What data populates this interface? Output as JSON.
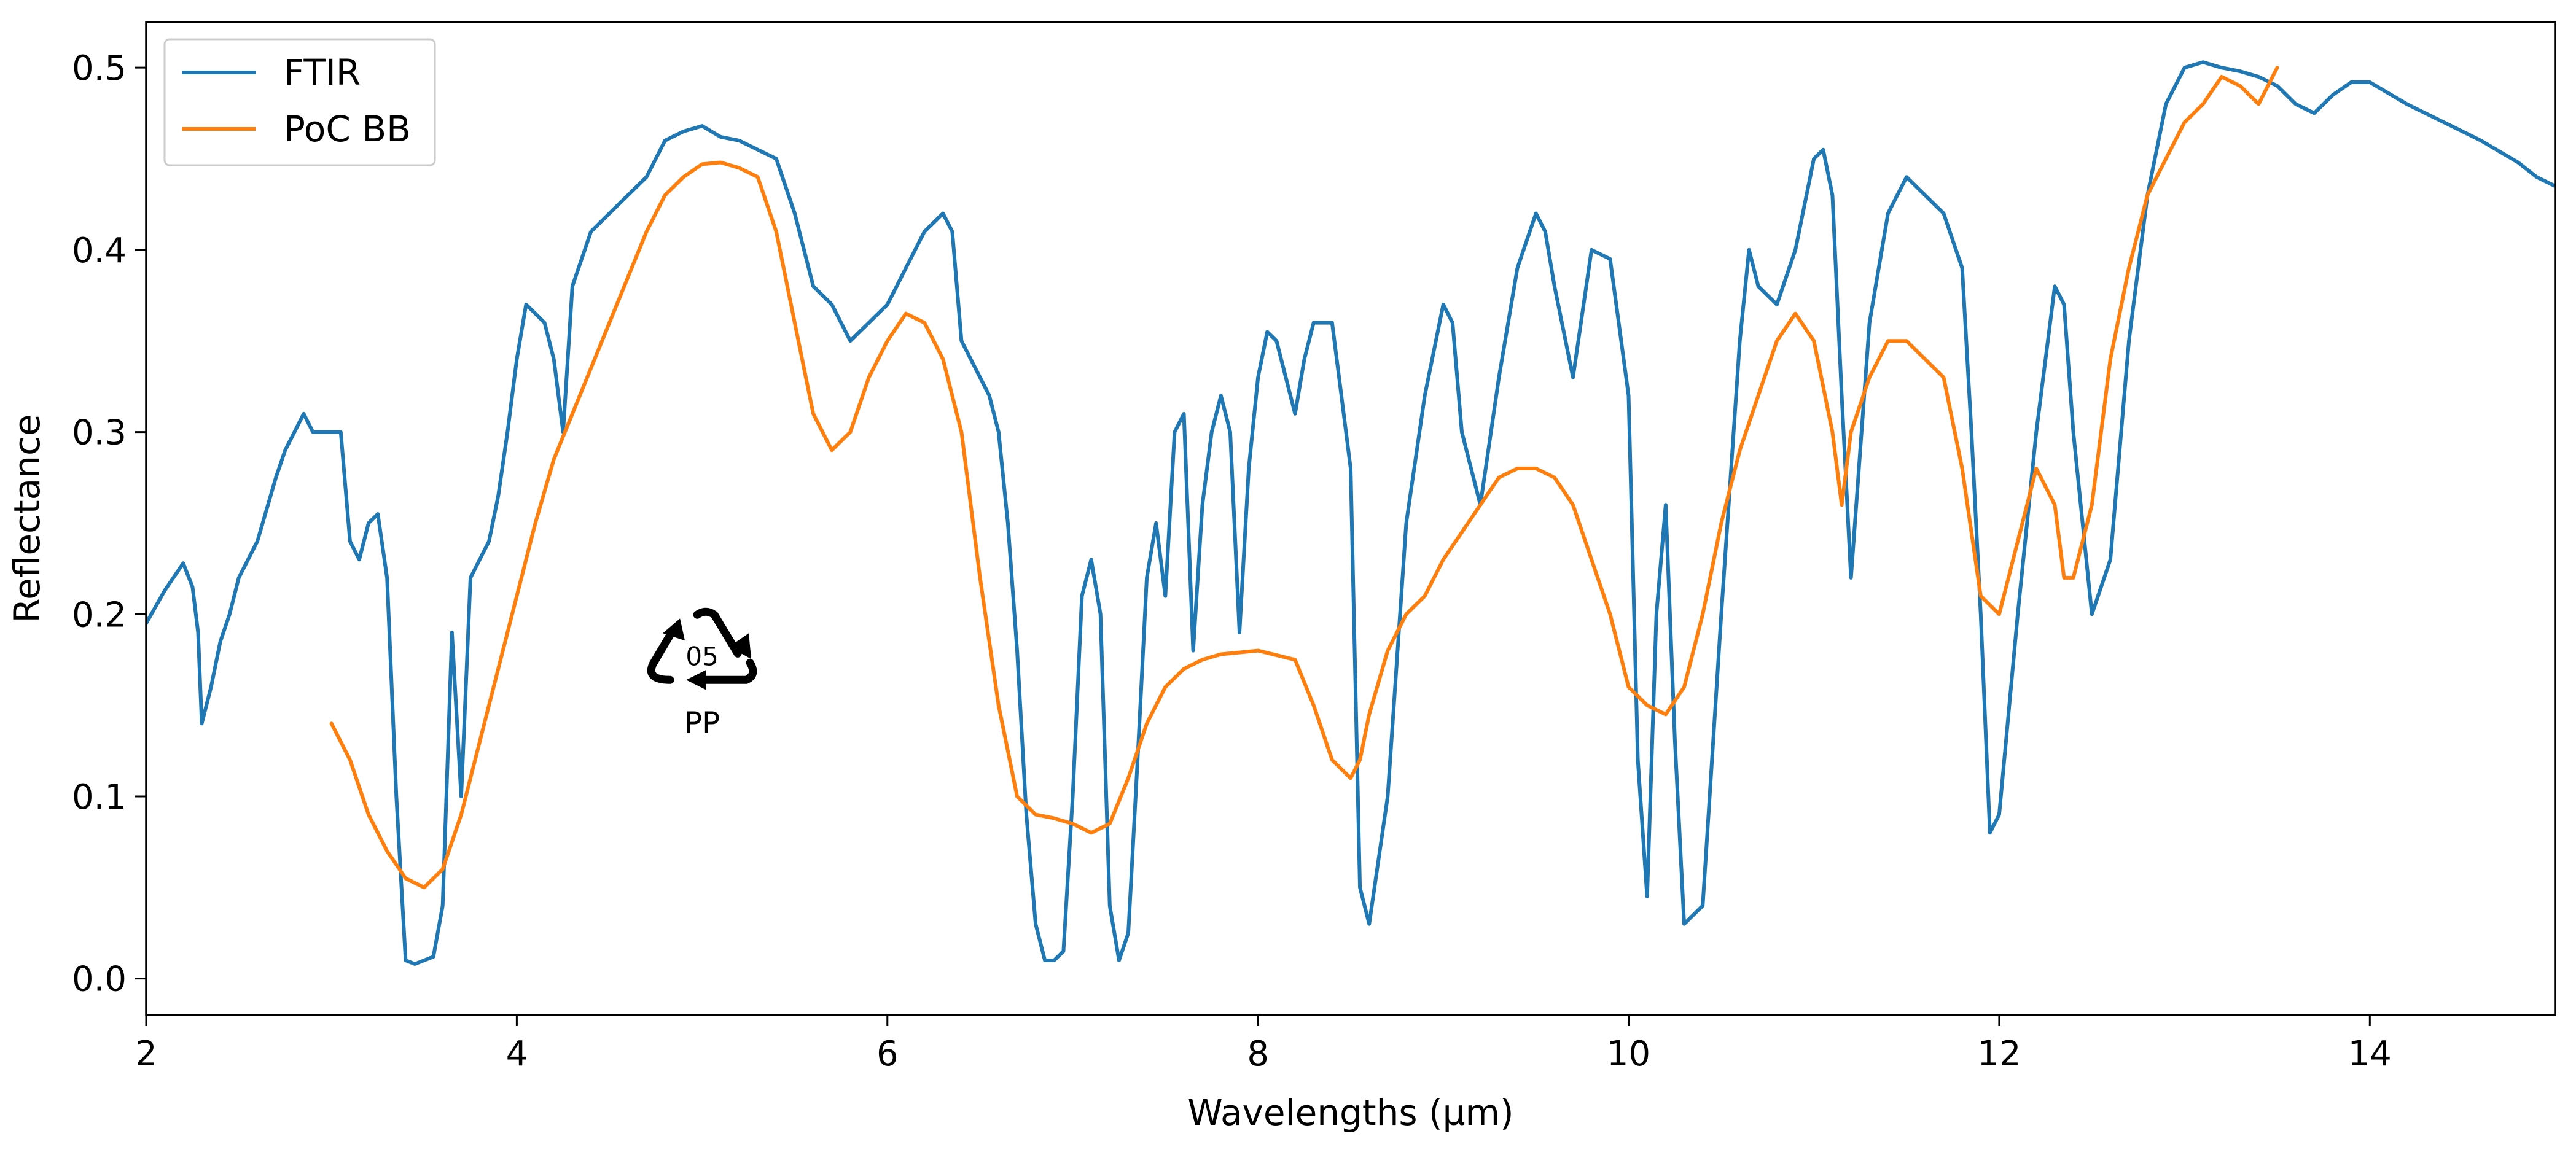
{
  "chart_data": {
    "type": "line",
    "title": "",
    "xlabel": "Wavelengths (µm)",
    "ylabel": "Reflectance",
    "xlim": [
      2,
      15
    ],
    "ylim": [
      -0.02,
      0.525
    ],
    "grid": false,
    "legend_position": "top-left",
    "x_ticks": [
      2,
      4,
      6,
      8,
      10,
      12,
      14
    ],
    "x_tick_labels": [
      "2",
      "4",
      "6",
      "8",
      "10",
      "12",
      "14"
    ],
    "y_ticks": [
      0.0,
      0.1,
      0.2,
      0.3,
      0.4,
      0.5
    ],
    "y_tick_labels": [
      "0.0",
      "0.1",
      "0.2",
      "0.3",
      "0.4",
      "0.5"
    ],
    "series": [
      {
        "name": "FTIR",
        "color": "#1f77b4",
        "x": [
          2.0,
          2.1,
          2.2,
          2.25,
          2.28,
          2.3,
          2.35,
          2.4,
          2.45,
          2.5,
          2.6,
          2.7,
          2.75,
          2.8,
          2.85,
          2.9,
          3.0,
          3.05,
          3.1,
          3.15,
          3.2,
          3.25,
          3.3,
          3.35,
          3.4,
          3.45,
          3.5,
          3.55,
          3.6,
          3.65,
          3.7,
          3.75,
          3.8,
          3.85,
          3.9,
          3.95,
          4.0,
          4.05,
          4.1,
          4.15,
          4.2,
          4.25,
          4.3,
          4.4,
          4.5,
          4.6,
          4.7,
          4.8,
          4.9,
          5.0,
          5.1,
          5.2,
          5.3,
          5.4,
          5.5,
          5.6,
          5.7,
          5.8,
          5.9,
          6.0,
          6.1,
          6.2,
          6.3,
          6.35,
          6.4,
          6.5,
          6.55,
          6.6,
          6.65,
          6.7,
          6.75,
          6.8,
          6.85,
          6.9,
          6.95,
          7.0,
          7.05,
          7.1,
          7.15,
          7.2,
          7.25,
          7.3,
          7.35,
          7.4,
          7.45,
          7.5,
          7.55,
          7.6,
          7.65,
          7.7,
          7.75,
          7.8,
          7.85,
          7.9,
          7.95,
          8.0,
          8.05,
          8.1,
          8.15,
          8.2,
          8.25,
          8.3,
          8.4,
          8.5,
          8.55,
          8.6,
          8.7,
          8.8,
          8.9,
          9.0,
          9.05,
          9.1,
          9.2,
          9.3,
          9.4,
          9.5,
          9.55,
          9.6,
          9.7,
          9.8,
          9.9,
          10.0,
          10.05,
          10.1,
          10.15,
          10.2,
          10.25,
          10.3,
          10.4,
          10.5,
          10.6,
          10.65,
          10.7,
          10.8,
          10.9,
          11.0,
          11.05,
          11.1,
          11.15,
          11.2,
          11.3,
          11.4,
          11.5,
          11.6,
          11.7,
          11.8,
          11.85,
          11.9,
          11.95,
          12.0,
          12.1,
          12.2,
          12.3,
          12.35,
          12.4,
          12.5,
          12.6,
          12.7,
          12.8,
          12.9,
          13.0,
          13.1,
          13.2,
          13.3,
          13.4,
          13.5,
          13.6,
          13.7,
          13.8,
          13.9,
          14.0,
          14.2,
          14.4,
          14.6,
          14.8,
          14.9,
          15.0
        ],
        "values": [
          0.195,
          0.213,
          0.228,
          0.215,
          0.19,
          0.14,
          0.16,
          0.185,
          0.2,
          0.22,
          0.24,
          0.275,
          0.29,
          0.3,
          0.31,
          0.3,
          0.3,
          0.3,
          0.24,
          0.23,
          0.25,
          0.255,
          0.22,
          0.1,
          0.01,
          0.008,
          0.01,
          0.012,
          0.04,
          0.19,
          0.1,
          0.22,
          0.23,
          0.24,
          0.265,
          0.3,
          0.34,
          0.37,
          0.365,
          0.36,
          0.34,
          0.3,
          0.38,
          0.41,
          0.42,
          0.43,
          0.44,
          0.46,
          0.465,
          0.468,
          0.462,
          0.46,
          0.455,
          0.45,
          0.42,
          0.38,
          0.37,
          0.35,
          0.36,
          0.37,
          0.39,
          0.41,
          0.42,
          0.41,
          0.35,
          0.33,
          0.32,
          0.3,
          0.25,
          0.18,
          0.09,
          0.03,
          0.01,
          0.01,
          0.015,
          0.1,
          0.21,
          0.23,
          0.2,
          0.04,
          0.01,
          0.025,
          0.12,
          0.22,
          0.25,
          0.21,
          0.3,
          0.31,
          0.18,
          0.26,
          0.3,
          0.32,
          0.3,
          0.19,
          0.28,
          0.33,
          0.355,
          0.35,
          0.33,
          0.31,
          0.34,
          0.36,
          0.36,
          0.28,
          0.05,
          0.03,
          0.1,
          0.25,
          0.32,
          0.37,
          0.36,
          0.3,
          0.26,
          0.33,
          0.39,
          0.42,
          0.41,
          0.38,
          0.33,
          0.4,
          0.395,
          0.32,
          0.12,
          0.045,
          0.2,
          0.26,
          0.13,
          0.03,
          0.04,
          0.2,
          0.35,
          0.4,
          0.38,
          0.37,
          0.4,
          0.45,
          0.455,
          0.43,
          0.32,
          0.22,
          0.36,
          0.42,
          0.44,
          0.43,
          0.42,
          0.39,
          0.3,
          0.2,
          0.08,
          0.09,
          0.2,
          0.3,
          0.38,
          0.37,
          0.3,
          0.2,
          0.23,
          0.35,
          0.43,
          0.48,
          0.5,
          0.503,
          0.5,
          0.498,
          0.495,
          0.49,
          0.48,
          0.475,
          0.485,
          0.492,
          0.492,
          0.48,
          0.47,
          0.46,
          0.448,
          0.44,
          0.435
        ]
      },
      {
        "name": "PoC BB",
        "color": "#ff7f0e",
        "x": [
          3.0,
          3.1,
          3.2,
          3.3,
          3.4,
          3.5,
          3.6,
          3.7,
          3.8,
          3.9,
          4.0,
          4.1,
          4.2,
          4.3,
          4.4,
          4.5,
          4.6,
          4.7,
          4.8,
          4.9,
          5.0,
          5.1,
          5.2,
          5.3,
          5.4,
          5.5,
          5.6,
          5.7,
          5.8,
          5.9,
          6.0,
          6.1,
          6.2,
          6.3,
          6.4,
          6.5,
          6.6,
          6.7,
          6.8,
          6.9,
          7.0,
          7.1,
          7.2,
          7.3,
          7.4,
          7.5,
          7.6,
          7.7,
          7.8,
          8.0,
          8.2,
          8.3,
          8.4,
          8.5,
          8.55,
          8.6,
          8.7,
          8.8,
          8.9,
          9.0,
          9.1,
          9.2,
          9.3,
          9.4,
          9.5,
          9.6,
          9.7,
          9.8,
          9.9,
          10.0,
          10.1,
          10.2,
          10.3,
          10.4,
          10.5,
          10.6,
          10.7,
          10.8,
          10.9,
          11.0,
          11.1,
          11.15,
          11.2,
          11.3,
          11.4,
          11.5,
          11.6,
          11.7,
          11.8,
          11.9,
          12.0,
          12.1,
          12.2,
          12.3,
          12.35,
          12.4,
          12.5,
          12.6,
          12.7,
          12.8,
          12.9,
          13.0,
          13.1,
          13.2,
          13.3,
          13.4,
          13.5
        ],
        "values": [
          0.14,
          0.12,
          0.09,
          0.07,
          0.055,
          0.05,
          0.06,
          0.09,
          0.13,
          0.17,
          0.21,
          0.25,
          0.285,
          0.31,
          0.335,
          0.36,
          0.385,
          0.41,
          0.43,
          0.44,
          0.447,
          0.448,
          0.445,
          0.44,
          0.41,
          0.36,
          0.31,
          0.29,
          0.3,
          0.33,
          0.35,
          0.365,
          0.36,
          0.34,
          0.3,
          0.22,
          0.15,
          0.1,
          0.09,
          0.088,
          0.085,
          0.08,
          0.085,
          0.11,
          0.14,
          0.16,
          0.17,
          0.175,
          0.178,
          0.18,
          0.175,
          0.15,
          0.12,
          0.11,
          0.12,
          0.145,
          0.18,
          0.2,
          0.21,
          0.23,
          0.245,
          0.26,
          0.275,
          0.28,
          0.28,
          0.275,
          0.26,
          0.23,
          0.2,
          0.16,
          0.15,
          0.145,
          0.16,
          0.2,
          0.25,
          0.29,
          0.32,
          0.35,
          0.365,
          0.35,
          0.3,
          0.26,
          0.3,
          0.33,
          0.35,
          0.35,
          0.34,
          0.33,
          0.28,
          0.21,
          0.2,
          0.24,
          0.28,
          0.26,
          0.22,
          0.22,
          0.26,
          0.34,
          0.39,
          0.43,
          0.45,
          0.47,
          0.48,
          0.495,
          0.49,
          0.48,
          0.5
        ]
      }
    ],
    "annotations": [
      {
        "type": "recycling-symbol",
        "code": "05",
        "label": "PP",
        "x": 5.0,
        "y": 0.17
      }
    ]
  }
}
